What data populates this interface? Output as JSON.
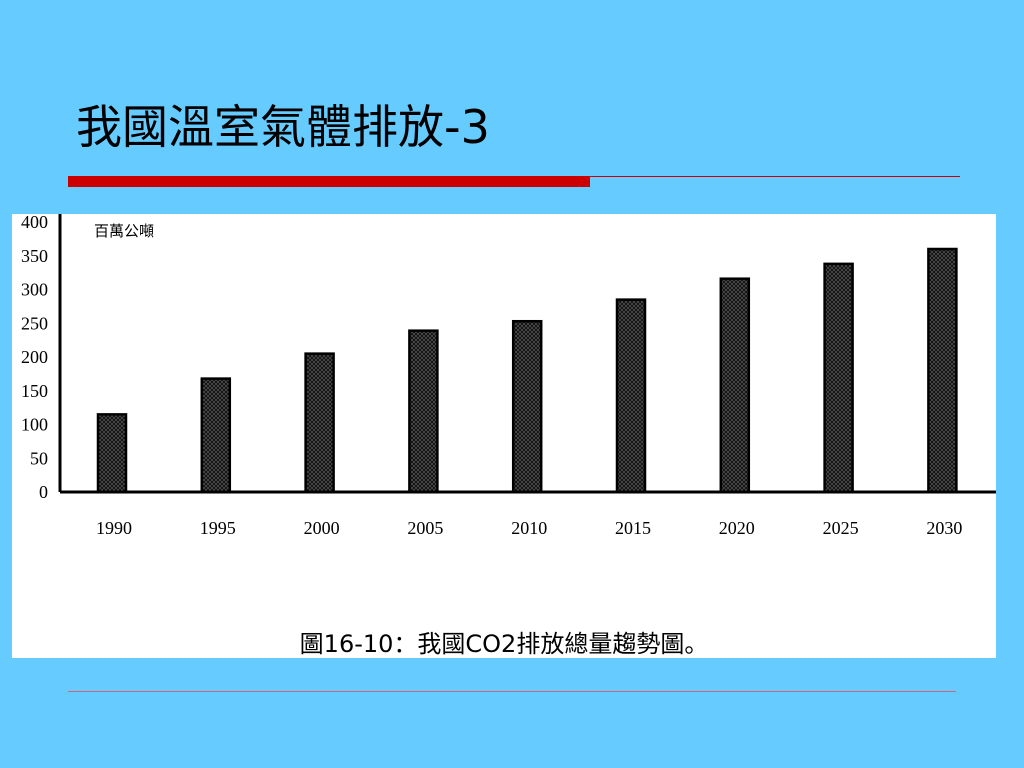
{
  "slide": {
    "title": "我國溫室氣體排放-3"
  },
  "colors": {
    "background": "#66ccff",
    "accent_red": "#cc0000"
  },
  "chart_data": {
    "type": "bar",
    "unit_label": "百萬公噸",
    "categories": [
      "1990",
      "1995",
      "2000",
      "2005",
      "2010",
      "2015",
      "2020",
      "2025",
      "2030"
    ],
    "values": [
      115,
      168,
      205,
      239,
      253,
      285,
      316,
      338,
      360
    ],
    "yticks": [
      "0",
      "50",
      "100",
      "150",
      "200",
      "250",
      "300",
      "350",
      "400"
    ],
    "ylim": [
      0,
      400
    ],
    "grid": false,
    "caption": "圖16-10：我國CO2排放總量趨勢圖。"
  }
}
